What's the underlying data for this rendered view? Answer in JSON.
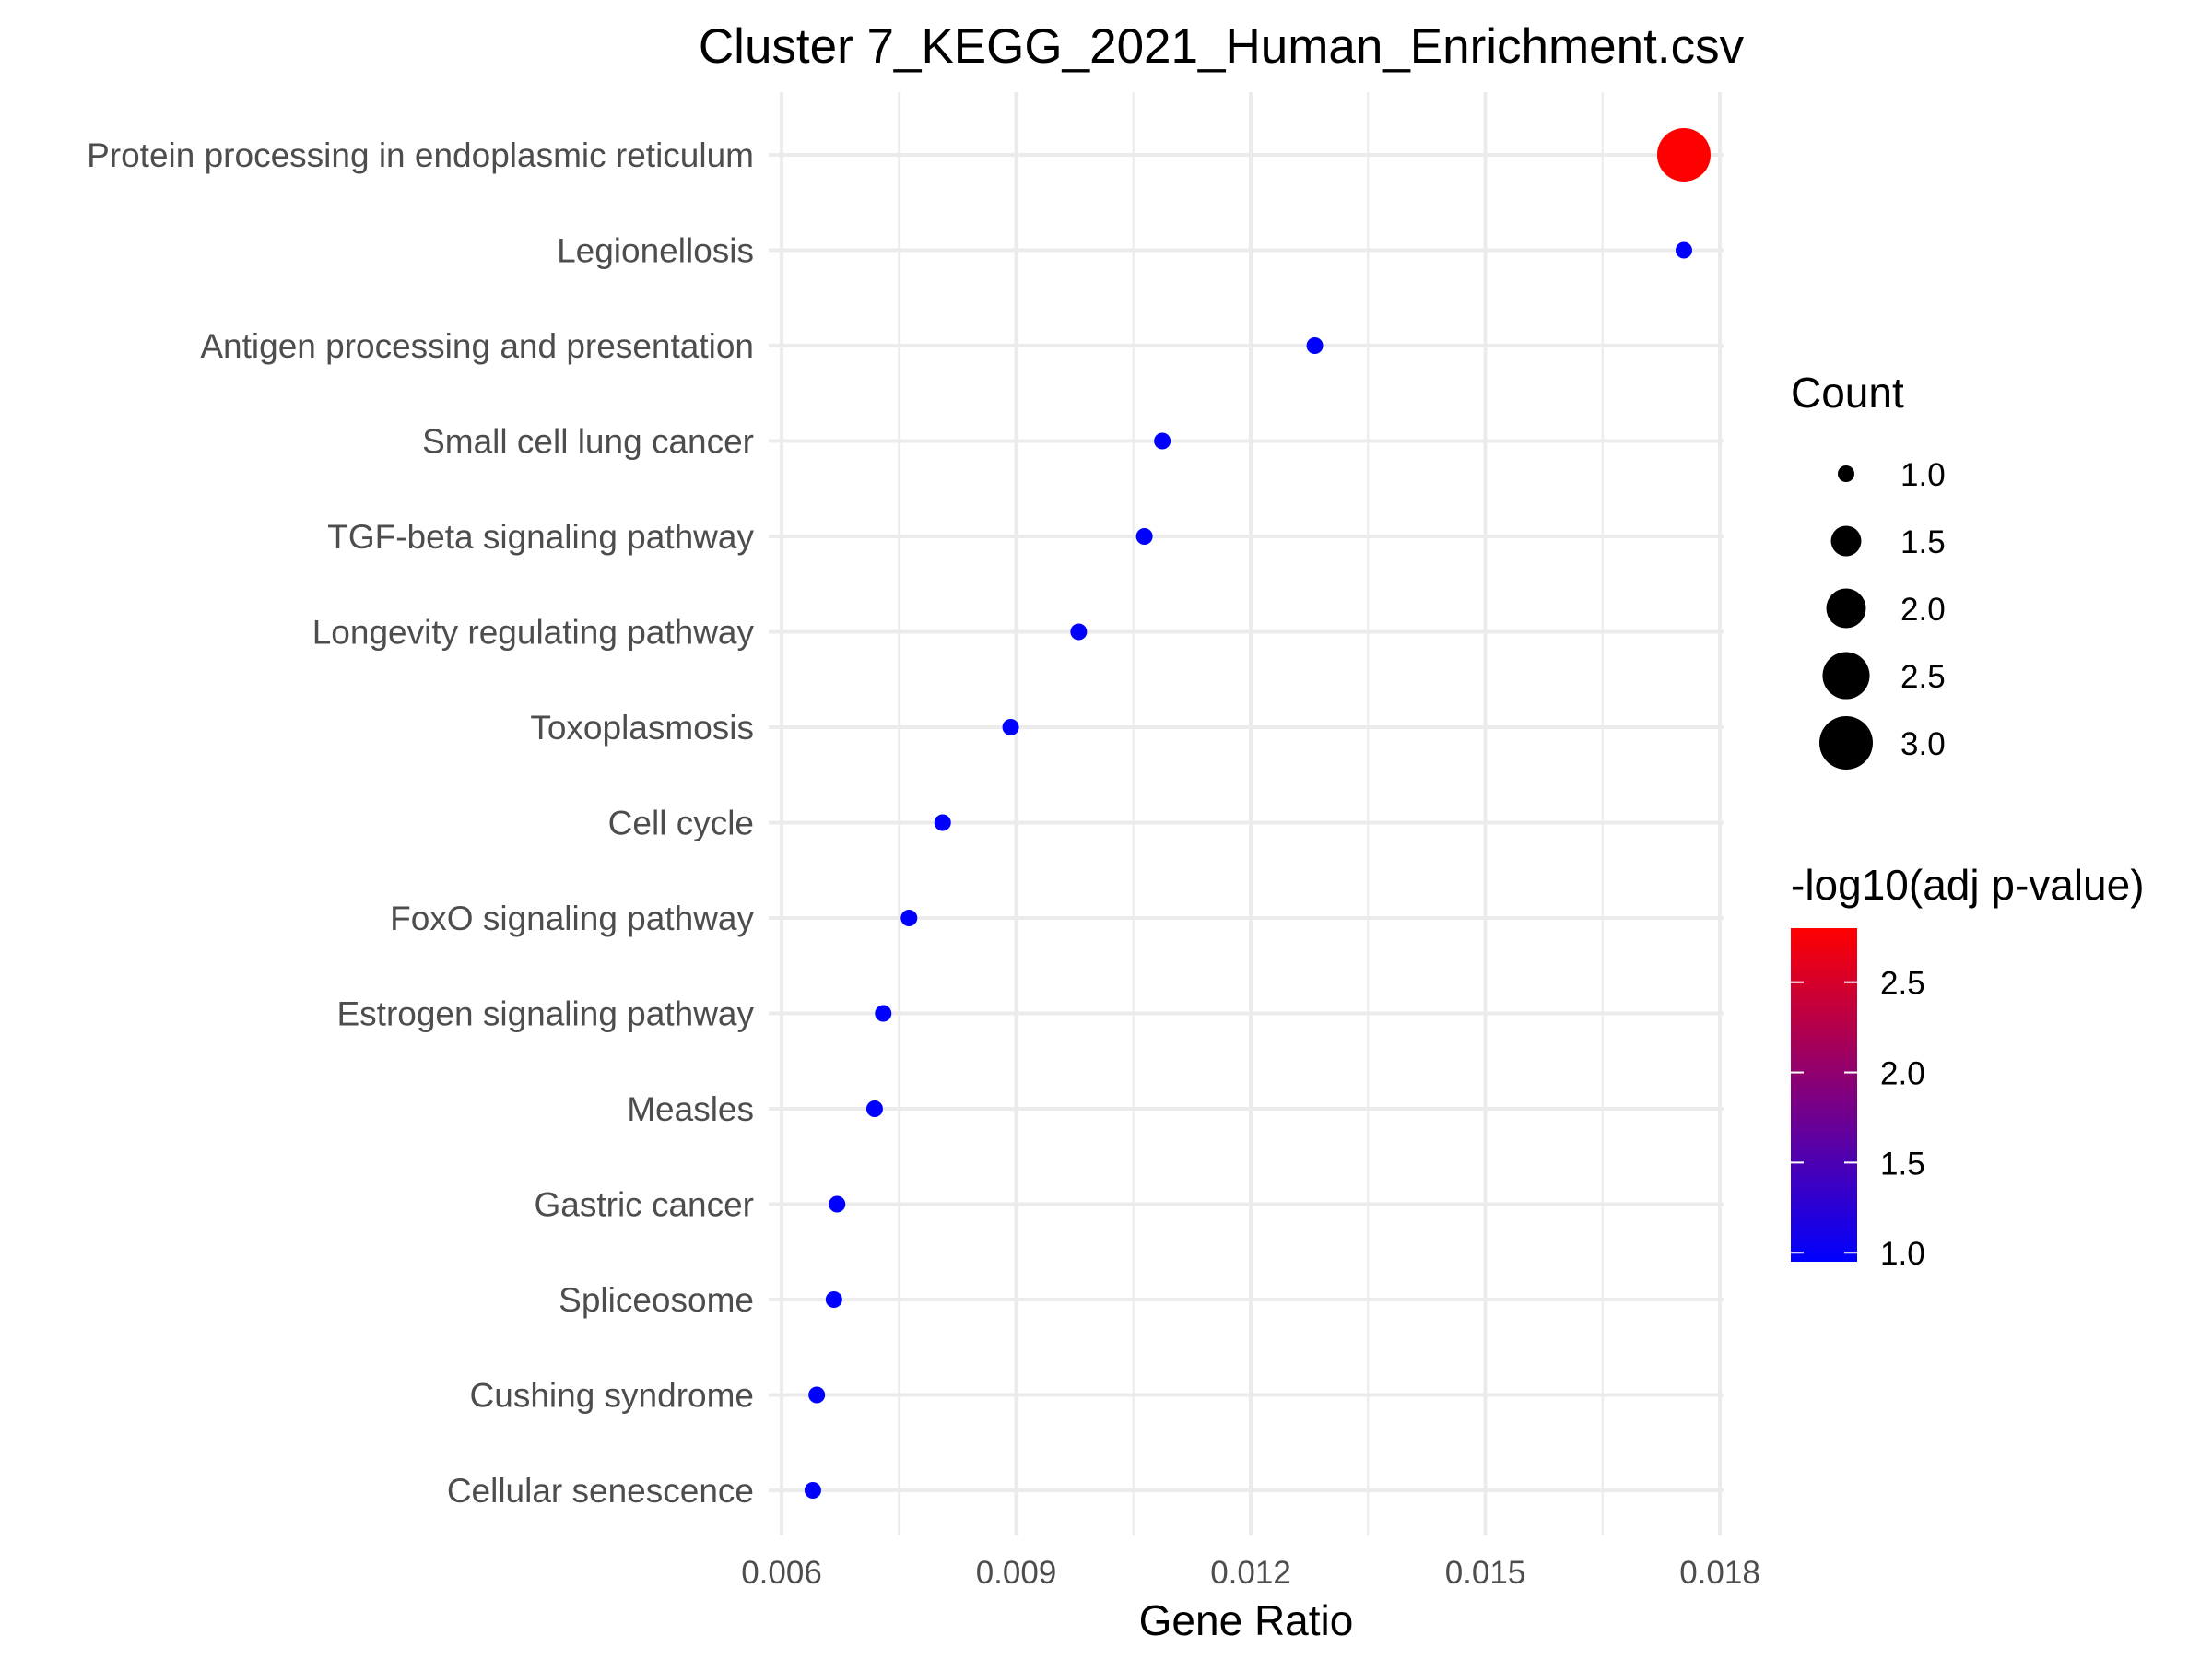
{
  "chart_data": {
    "type": "scatter",
    "title": "Cluster 7_KEGG_2021_Human_Enrichment.csv",
    "xlabel": "Gene Ratio",
    "ylabel": "",
    "xlim": [
      0.006,
      0.018
    ],
    "x_ticks": [
      "0.006",
      "0.009",
      "0.012",
      "0.015",
      "0.018"
    ],
    "grid": true,
    "legend_placement": "right",
    "points": [
      {
        "term": "Protein processing in endoplasmic reticulum",
        "gene_ratio": 0.01754,
        "count": 3,
        "neg_log10_adj_p": 2.8
      },
      {
        "term": "Legionellosis",
        "gene_ratio": 0.01754,
        "count": 1,
        "neg_log10_adj_p": 0.95
      },
      {
        "term": "Antigen processing and presentation",
        "gene_ratio": 0.01282,
        "count": 1,
        "neg_log10_adj_p": 0.95
      },
      {
        "term": "Small cell lung cancer",
        "gene_ratio": 0.01087,
        "count": 1,
        "neg_log10_adj_p": 0.95
      },
      {
        "term": "TGF-beta signaling pathway",
        "gene_ratio": 0.01064,
        "count": 1,
        "neg_log10_adj_p": 0.95
      },
      {
        "term": "Longevity regulating pathway",
        "gene_ratio": 0.0098,
        "count": 1,
        "neg_log10_adj_p": 0.95
      },
      {
        "term": "Toxoplasmosis",
        "gene_ratio": 0.00893,
        "count": 1,
        "neg_log10_adj_p": 0.95
      },
      {
        "term": "Cell cycle",
        "gene_ratio": 0.00806,
        "count": 1,
        "neg_log10_adj_p": 0.95
      },
      {
        "term": "FoxO signaling pathway",
        "gene_ratio": 0.00763,
        "count": 1,
        "neg_log10_adj_p": 0.95
      },
      {
        "term": "Estrogen signaling pathway",
        "gene_ratio": 0.0073,
        "count": 1,
        "neg_log10_adj_p": 0.95
      },
      {
        "term": "Measles",
        "gene_ratio": 0.00719,
        "count": 1,
        "neg_log10_adj_p": 0.95
      },
      {
        "term": "Gastric cancer",
        "gene_ratio": 0.00671,
        "count": 1,
        "neg_log10_adj_p": 0.95
      },
      {
        "term": "Spliceosome",
        "gene_ratio": 0.00667,
        "count": 1,
        "neg_log10_adj_p": 0.95
      },
      {
        "term": "Cushing syndrome",
        "gene_ratio": 0.00645,
        "count": 1,
        "neg_log10_adj_p": 0.95
      },
      {
        "term": "Cellular senescence",
        "gene_ratio": 0.0064,
        "count": 1,
        "neg_log10_adj_p": 0.95
      }
    ],
    "size_legend": {
      "title": "Count",
      "values": [
        1.0,
        1.5,
        2.0,
        2.5,
        3.0
      ],
      "labels": [
        "1.0",
        "1.5",
        "2.0",
        "2.5",
        "3.0"
      ]
    },
    "color_legend": {
      "title": "-log10(adj p-value)",
      "low_color": "#0000FF",
      "high_color": "#FF0000",
      "range": [
        0.95,
        2.8
      ],
      "ticks": [
        1.0,
        1.5,
        2.0,
        2.5
      ],
      "tick_labels": [
        "1.0",
        "1.5",
        "2.0",
        "2.5"
      ]
    }
  }
}
